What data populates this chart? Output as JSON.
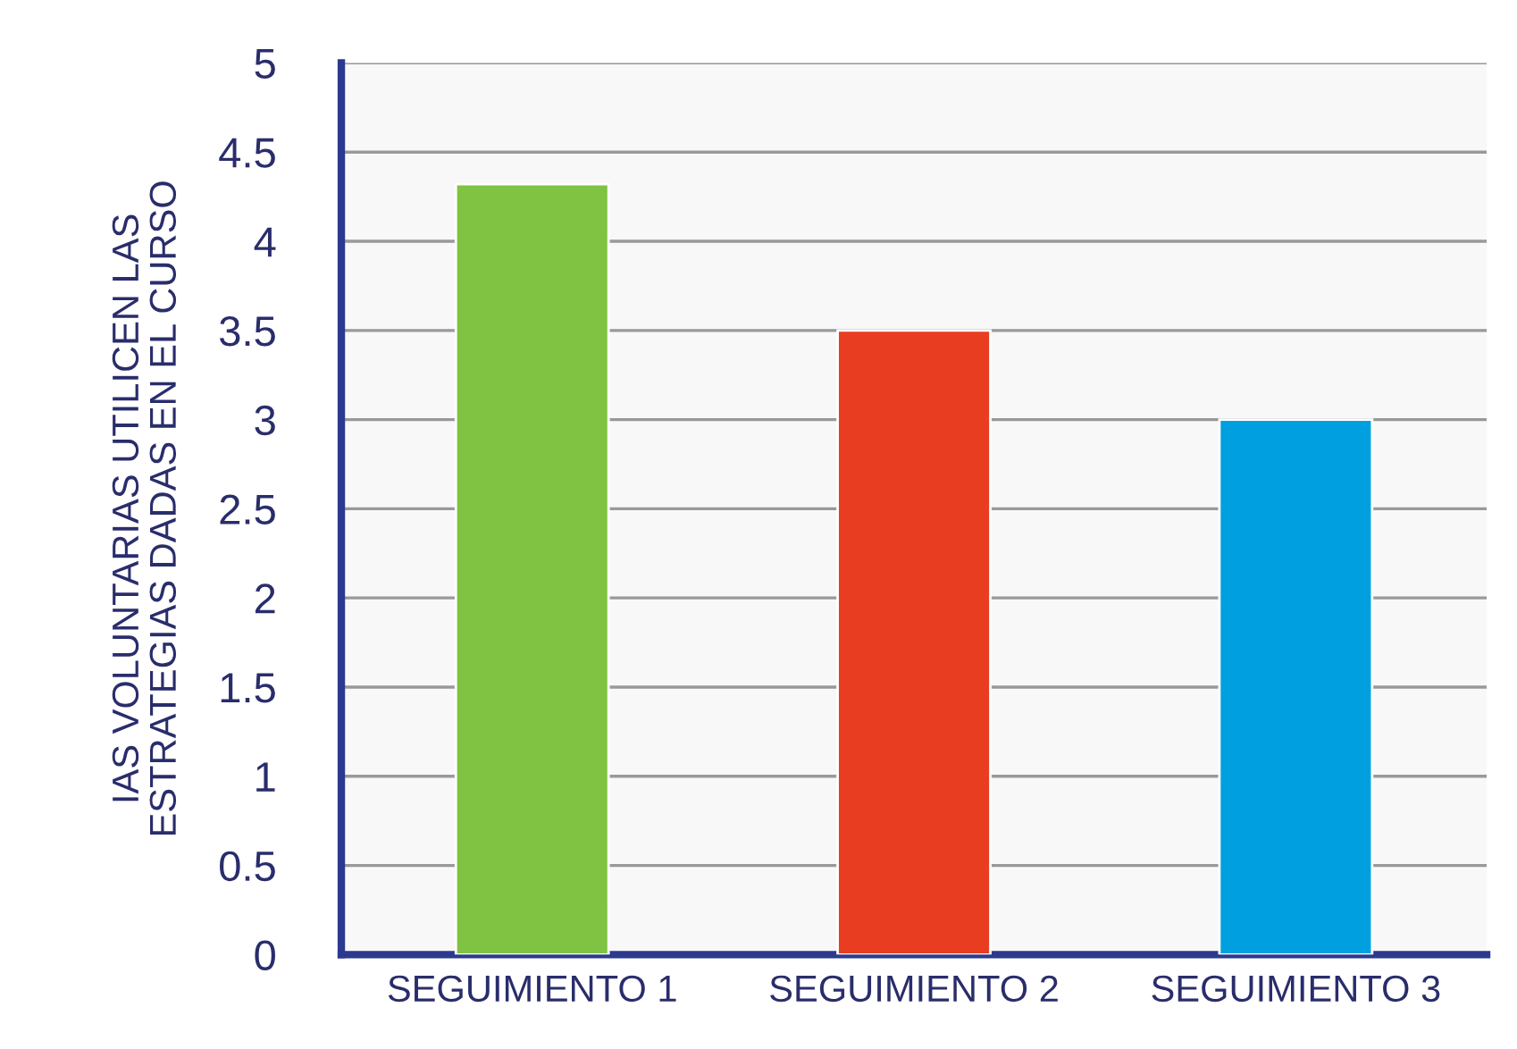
{
  "chart_data": {
    "type": "bar",
    "ylabel": "IAS VOLUNTARIAS UTILICEN LAS\nESTRATEGIAS DADAS EN EL CURSO",
    "categories": [
      "SEGUIMIENTO 1",
      "SEGUIMIENTO 2",
      "SEGUIMIENTO 3"
    ],
    "values": [
      4.32,
      3.5,
      3.0
    ],
    "colors": [
      "#80c242",
      "#e93d22",
      "#00a0e0"
    ],
    "ylim": [
      0,
      5
    ],
    "yticks": [
      0,
      0.5,
      1,
      1.5,
      2,
      2.5,
      3,
      3.5,
      4,
      4.5,
      5
    ],
    "grid": "y"
  }
}
